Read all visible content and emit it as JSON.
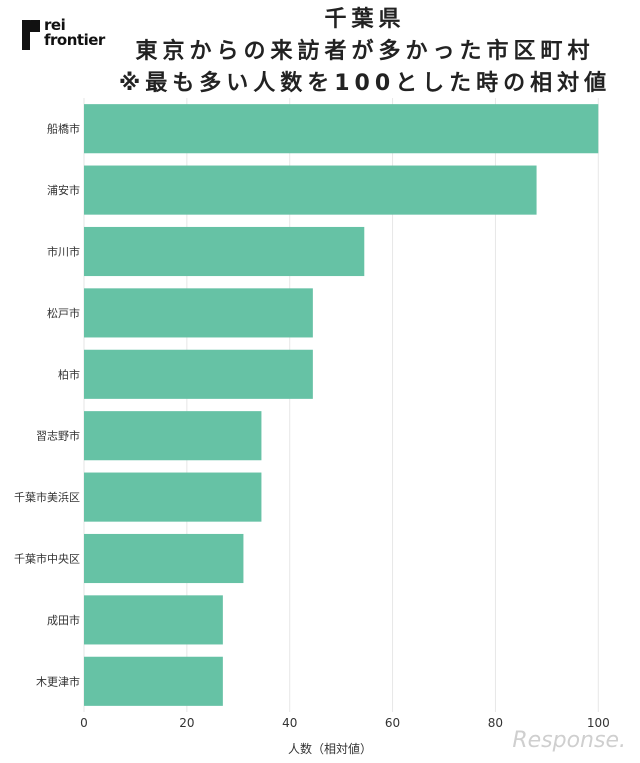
{
  "brand": {
    "line1": "rei",
    "line2": "frontier"
  },
  "title": {
    "line1": "千葉県",
    "line2": "東京からの来訪者が多かった市区町村",
    "line3": "※最も多い人数を100とした時の相対値"
  },
  "watermark": "Response.",
  "colors": {
    "bar": "#66c2a5",
    "grid": "#e6e6e6",
    "text": "#333333"
  },
  "chart_data": {
    "type": "bar",
    "orientation": "horizontal",
    "categories": [
      "船橋市",
      "浦安市",
      "市川市",
      "松戸市",
      "柏市",
      "習志野市",
      "千葉市美浜区",
      "千葉市中央区",
      "成田市",
      "木更津市"
    ],
    "values": [
      100,
      88,
      54.5,
      44.5,
      44.5,
      34.5,
      34.5,
      31,
      27,
      27
    ],
    "xlabel": "人数（相対値）",
    "ylabel": "",
    "xlim": [
      0,
      105
    ],
    "xticks": [
      0,
      20,
      40,
      60,
      80,
      100
    ],
    "grid": true
  }
}
